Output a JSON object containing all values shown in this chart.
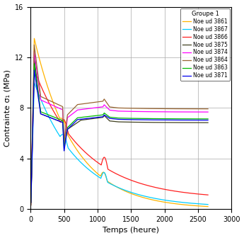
{
  "xlabel": "Temps (heure)",
  "ylabel": "Contrainte σ₁ (MPa)",
  "xlim": [
    0,
    3000
  ],
  "ylim": [
    0,
    16
  ],
  "xticks": [
    0,
    500,
    1000,
    1500,
    2000,
    2500,
    3000
  ],
  "yticks": [
    0,
    4,
    8,
    12,
    16
  ],
  "legend_title": "Groupe 1",
  "series": [
    {
      "label": "Noe ud 3861",
      "color": "#FFB300"
    },
    {
      "label": "Noe ud 3867",
      "color": "#00CCFF"
    },
    {
      "label": "Noe ud 3866",
      "color": "#FF2020"
    },
    {
      "label": "Noe ud 3875",
      "color": "#404020"
    },
    {
      "label": "Noe ud 3874",
      "color": "#FF00FF"
    },
    {
      "label": "Noe ud 3864",
      "color": "#996633"
    },
    {
      "label": "Noe ud 3863",
      "color": "#00BB00"
    },
    {
      "label": "Noe ud 3871",
      "color": "#0000EE"
    }
  ],
  "background_color": "#ffffff",
  "grid_color": "#aaaaaa"
}
